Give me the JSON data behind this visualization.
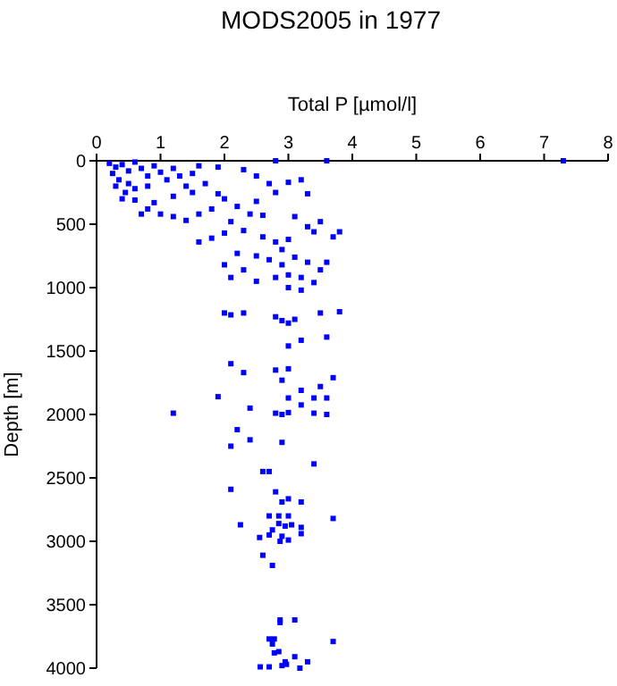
{
  "chart_data": {
    "type": "scatter",
    "title": "MODS2005 in 1977",
    "xlabel": "Total P [µmol/l]",
    "ylabel": "Depth [m]",
    "xlim": [
      0,
      8
    ],
    "xticks": [
      0,
      1,
      2,
      3,
      4,
      5,
      6,
      7,
      8
    ],
    "ylim": [
      4000,
      0
    ],
    "yticks": [
      0,
      500,
      1000,
      1500,
      2000,
      2500,
      3000,
      3500,
      4000
    ],
    "grid": false,
    "marker": "square",
    "series": [
      {
        "color": "#0000ff",
        "x": [
          0.2,
          0.3,
          0.25,
          0.4,
          0.5,
          0.6,
          0.7,
          0.8,
          0.9,
          1.0,
          0.35,
          0.5,
          0.3,
          0.6,
          0.45,
          0.8,
          1.1,
          1.2,
          1.3,
          1.4,
          1.5,
          1.6,
          1.7,
          1.5,
          1.2,
          0.4,
          0.6,
          0.9,
          0.8,
          1.0,
          0.7,
          1.2,
          1.4,
          1.6,
          1.8,
          1.9,
          2.0,
          2.2,
          2.4,
          2.1,
          2.6,
          2.5,
          2.8,
          2.7,
          3.0,
          3.2,
          2.5,
          2.3,
          1.9,
          2.8,
          3.6,
          7.3,
          3.3,
          3.1,
          3.3,
          3.5,
          3.7,
          3.8,
          3.4,
          1.6,
          1.8,
          2.0,
          2.3,
          2.6,
          2.8,
          3.0,
          2.9,
          2.5,
          2.2,
          2.0,
          2.3,
          2.7,
          2.9,
          3.1,
          3.3,
          3.5,
          3.6,
          2.1,
          2.5,
          2.8,
          3.0,
          3.2,
          3.4,
          3.0,
          3.2,
          2.0,
          2.1,
          2.3,
          2.8,
          2.9,
          3.0,
          3.1,
          3.5,
          3.8,
          3.6,
          3.2,
          3.0,
          2.1,
          2.3,
          2.8,
          3.0,
          2.9,
          3.5,
          3.7,
          3.2,
          1.9,
          3.0,
          3.4,
          3.6,
          1.2,
          2.4,
          2.8,
          2.9,
          3.0,
          3.2,
          3.4,
          3.6,
          2.2,
          2.1,
          2.4,
          2.9,
          3.4,
          2.6,
          2.7,
          2.1,
          2.8,
          3.0,
          2.9,
          3.2,
          3.7,
          2.7,
          2.85,
          3.0,
          2.25,
          2.85,
          2.95,
          3.05,
          3.2,
          2.75,
          2.55,
          2.7,
          2.9,
          3.0,
          2.87,
          3.2,
          2.6,
          2.75,
          2.87,
          3.1,
          2.87,
          2.7,
          2.78,
          2.75,
          3.7,
          2.85,
          2.78,
          3.1,
          2.95,
          2.97,
          3.3,
          2.56,
          2.7,
          3.18,
          2.9
        ],
        "values": [
          20,
          50,
          100,
          30,
          80,
          10,
          60,
          120,
          40,
          90,
          150,
          180,
          200,
          220,
          250,
          200,
          150,
          60,
          120,
          200,
          100,
          40,
          180,
          250,
          280,
          300,
          310,
          330,
          380,
          420,
          420,
          440,
          470,
          420,
          380,
          260,
          300,
          360,
          420,
          480,
          430,
          320,
          250,
          180,
          170,
          150,
          120,
          70,
          50,
          0,
          0,
          0,
          260,
          440,
          520,
          480,
          600,
          560,
          560,
          640,
          610,
          570,
          550,
          600,
          640,
          620,
          700,
          750,
          730,
          820,
          860,
          780,
          820,
          760,
          800,
          860,
          800,
          920,
          950,
          920,
          900,
          920,
          960,
          1000,
          1020,
          1200,
          1215,
          1200,
          1230,
          1260,
          1280,
          1250,
          1200,
          1190,
          1390,
          1415,
          1460,
          1600,
          1670,
          1650,
          1640,
          1730,
          1780,
          1710,
          1810,
          1860,
          1870,
          1870,
          1870,
          1990,
          1950,
          1990,
          2000,
          1985,
          1925,
          1990,
          2000,
          2120,
          2250,
          2200,
          2220,
          2390,
          2450,
          2450,
          2590,
          2610,
          2665,
          2690,
          2690,
          2820,
          2800,
          2800,
          2800,
          2870,
          2860,
          2880,
          2870,
          2890,
          2910,
          2970,
          2950,
          2960,
          2990,
          3000,
          2940,
          3110,
          3190,
          3620,
          3620,
          3640,
          3770,
          3770,
          3810,
          3790,
          3870,
          3880,
          3910,
          3950,
          3970,
          3950,
          3990,
          3990,
          4000,
          3980
        ]
      }
    ]
  }
}
